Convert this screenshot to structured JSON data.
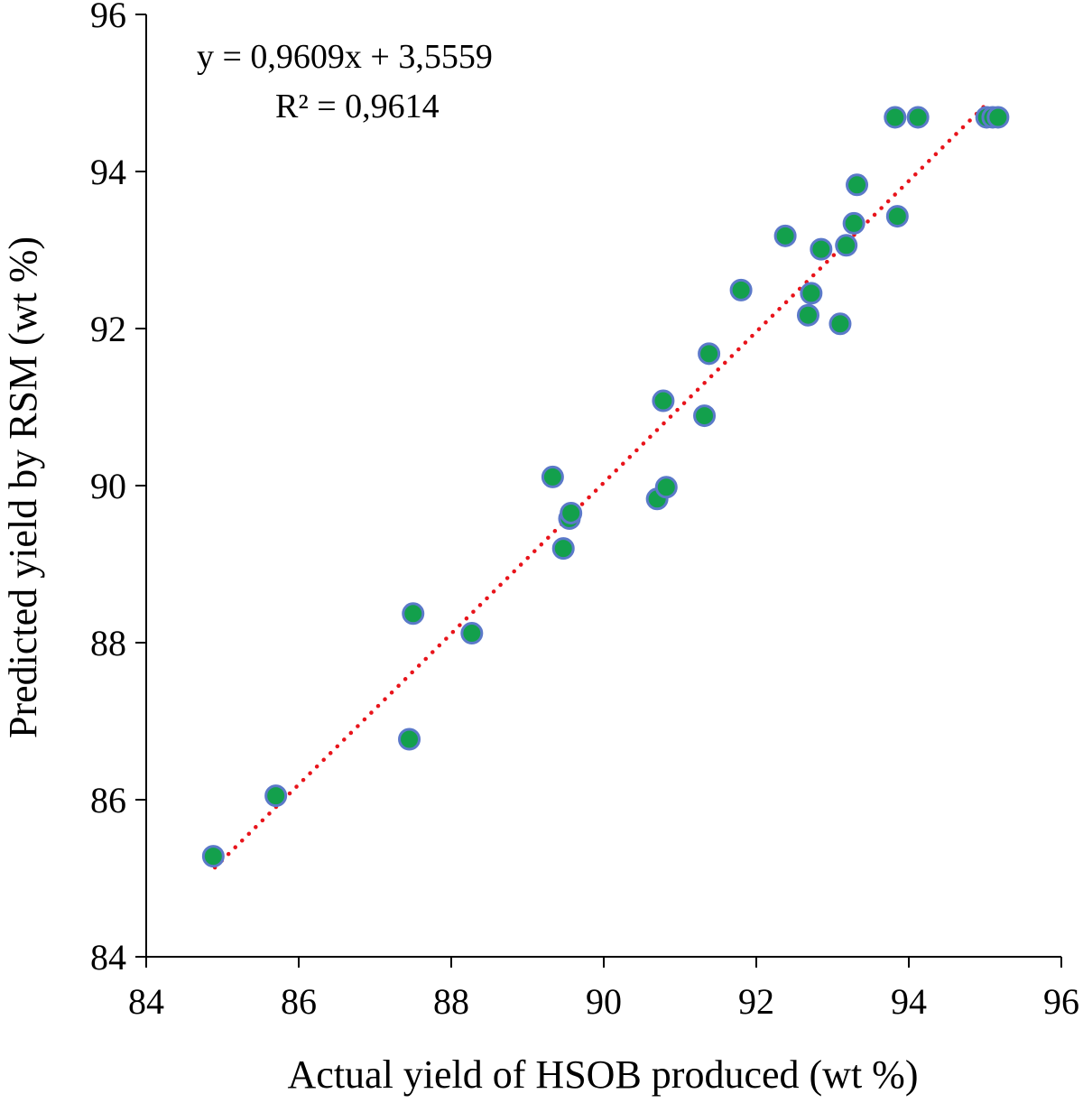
{
  "chart_data": {
    "type": "scatter",
    "xlabel": "Actual yield of HSOB produced (wt %)",
    "ylabel": "Predicted yield by RSM (wt %)",
    "xlim": [
      84,
      96
    ],
    "ylim": [
      84,
      96
    ],
    "xticks": [
      "84",
      "86",
      "88",
      "90",
      "92",
      "94",
      "96"
    ],
    "yticks": [
      "84",
      "86",
      "88",
      "90",
      "92",
      "94",
      "96"
    ],
    "grid": false,
    "legend": "none",
    "points": [
      {
        "x": 84.88,
        "y": 85.28
      },
      {
        "x": 85.7,
        "y": 86.05
      },
      {
        "x": 87.45,
        "y": 86.77
      },
      {
        "x": 87.5,
        "y": 88.37
      },
      {
        "x": 88.27,
        "y": 88.12
      },
      {
        "x": 89.33,
        "y": 90.11
      },
      {
        "x": 89.47,
        "y": 89.2
      },
      {
        "x": 89.55,
        "y": 89.58
      },
      {
        "x": 89.57,
        "y": 89.65
      },
      {
        "x": 90.7,
        "y": 89.83
      },
      {
        "x": 90.82,
        "y": 89.98
      },
      {
        "x": 90.78,
        "y": 91.08
      },
      {
        "x": 91.32,
        "y": 90.89
      },
      {
        "x": 91.38,
        "y": 91.68
      },
      {
        "x": 91.8,
        "y": 92.49
      },
      {
        "x": 92.38,
        "y": 93.18
      },
      {
        "x": 92.68,
        "y": 92.17
      },
      {
        "x": 92.72,
        "y": 92.45
      },
      {
        "x": 92.85,
        "y": 93.01
      },
      {
        "x": 93.1,
        "y": 92.06
      },
      {
        "x": 93.18,
        "y": 93.06
      },
      {
        "x": 93.28,
        "y": 93.34
      },
      {
        "x": 93.32,
        "y": 93.83
      },
      {
        "x": 93.82,
        "y": 94.69
      },
      {
        "x": 93.85,
        "y": 93.43
      },
      {
        "x": 94.12,
        "y": 94.69
      },
      {
        "x": 95.02,
        "y": 94.69
      },
      {
        "x": 95.1,
        "y": 94.69
      },
      {
        "x": 95.17,
        "y": 94.69
      }
    ],
    "trendline": {
      "slope": 0.9609,
      "intercept": 3.5559,
      "x_range": [
        84.9,
        95.05
      ],
      "equation": "y = 0,9609x + 3,5559",
      "r_squared": "R² = 0,9614"
    },
    "colors": {
      "point_fill": "#13a04c",
      "point_stroke": "#5b79c9",
      "trendline": "#e8141b",
      "axis": "#000000"
    }
  }
}
